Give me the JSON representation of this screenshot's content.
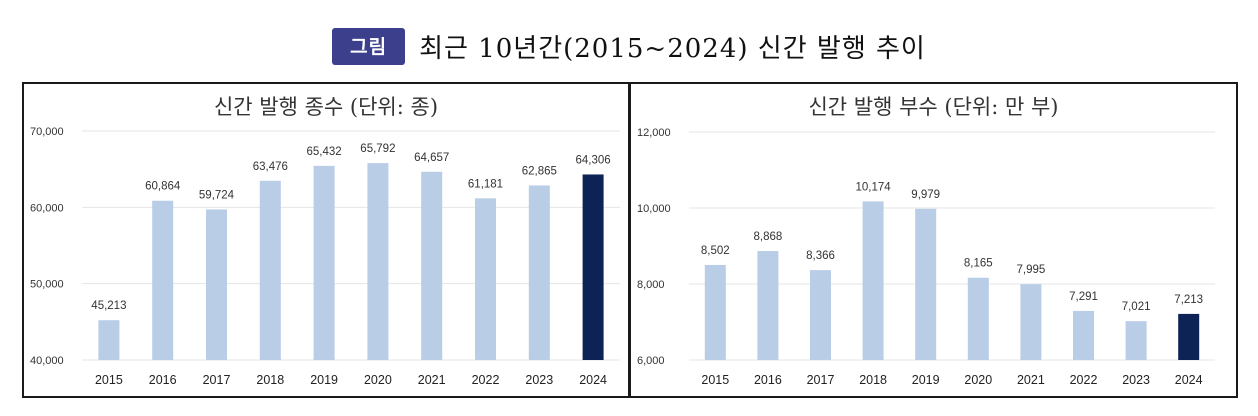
{
  "figure": {
    "badge": "그림",
    "title": "최근 10년간(2015~2024) 신간 발행 추이"
  },
  "colors": {
    "bar": "#b9cde6",
    "highlight": "#0d2356",
    "badge": "#3b3f8c"
  },
  "chart_data": [
    {
      "type": "bar",
      "title": "신간 발행 종수 (단위: 종)",
      "categories": [
        "2015",
        "2016",
        "2017",
        "2018",
        "2019",
        "2020",
        "2021",
        "2022",
        "2023",
        "2024"
      ],
      "values": [
        45213,
        60864,
        59724,
        63476,
        65432,
        65792,
        64657,
        61181,
        62865,
        64306
      ],
      "data_labels": [
        "45,213",
        "60,864",
        "59,724",
        "63,476",
        "65,432",
        "65,792",
        "64,657",
        "61,181",
        "62,865",
        "64,306"
      ],
      "ylim": [
        40000,
        70000
      ],
      "yticks": [
        40000,
        50000,
        60000,
        70000
      ],
      "ytick_labels": [
        "40,000",
        "50,000",
        "60,000",
        "70,000"
      ],
      "highlight_index": 9,
      "grid": true
    },
    {
      "type": "bar",
      "title": "신간 발행 부수 (단위: 만 부)",
      "categories": [
        "2015",
        "2016",
        "2017",
        "2018",
        "2019",
        "2020",
        "2021",
        "2022",
        "2023",
        "2024"
      ],
      "values": [
        8502,
        8868,
        8366,
        10174,
        9979,
        8165,
        7995,
        7291,
        7021,
        7213
      ],
      "data_labels": [
        "8,502",
        "8,868",
        "8,366",
        "10,174",
        "9,979",
        "8,165",
        "7,995",
        "7,291",
        "7,021",
        "7,213"
      ],
      "ylim": [
        6000,
        12000
      ],
      "yticks": [
        6000,
        8000,
        10000,
        12000
      ],
      "ytick_labels": [
        "6,000",
        "8,000",
        "10,000",
        "12,000"
      ],
      "highlight_index": 9,
      "grid": true
    }
  ]
}
